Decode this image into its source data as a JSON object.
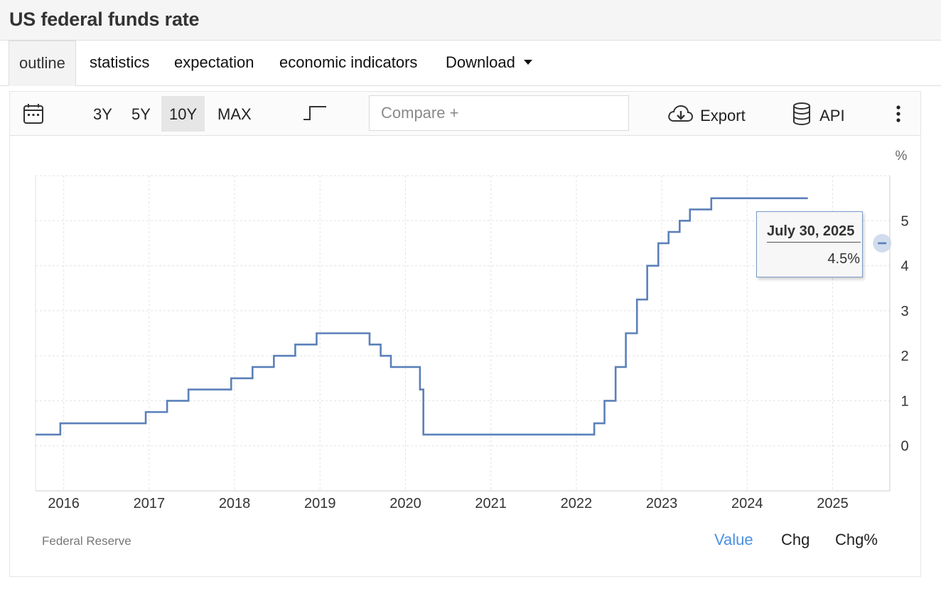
{
  "page": {
    "title": "US federal funds rate"
  },
  "tabs": [
    {
      "label": "outline",
      "active": true
    },
    {
      "label": "statistics"
    },
    {
      "label": "expectation"
    },
    {
      "label": "economic indicators"
    },
    {
      "label": "Download"
    }
  ],
  "toolbar": {
    "calendar_icon": "calendar-icon",
    "ranges": [
      {
        "label": "3Y"
      },
      {
        "label": "5Y"
      },
      {
        "label": "10Y",
        "selected": true
      },
      {
        "label": "MAX"
      }
    ],
    "chart_type_icon": "step-line-icon",
    "compare_placeholder": "Compare +",
    "export_label": "Export",
    "export_icon": "cloud-download-icon",
    "api_label": "API",
    "api_icon": "database-icon",
    "more_icon": "vertical-dots-icon"
  },
  "footer": {
    "source": "Federal Reserve",
    "value_tabs": [
      {
        "label": "Value",
        "active": true
      },
      {
        "label": "Chg"
      },
      {
        "label": "Chg%"
      }
    ]
  },
  "tooltip": {
    "date": "July 30, 2025",
    "value": "4.5%"
  },
  "colors": {
    "line": "#5b80b9",
    "active_tab": "#4a90e2",
    "tooltip_border": "#7a99c6"
  },
  "chart_data": {
    "type": "line",
    "step": true,
    "unit_label": "%",
    "x_range": [
      2015.67,
      2025.67
    ],
    "ylim": [
      -1,
      6
    ],
    "x_ticks": [
      "2016",
      "2017",
      "2018",
      "2019",
      "2020",
      "2021",
      "2022",
      "2023",
      "2024",
      "2025"
    ],
    "y_ticks": [
      "0",
      "1",
      "2",
      "3",
      "4",
      "5"
    ],
    "y_axis_position": "right",
    "grid": true,
    "series": [
      {
        "x": [
          2015.67,
          2015.96,
          2016.96,
          2017.21,
          2017.46,
          2017.96,
          2018.21,
          2018.46,
          2018.71,
          2018.96,
          2019.58,
          2019.71,
          2019.83,
          2020.17,
          2020.21,
          2022.21,
          2022.33,
          2022.46,
          2022.58,
          2022.71,
          2022.83,
          2022.96,
          2023.08,
          2023.21,
          2023.33,
          2023.58,
          2024.71
        ],
        "y": [
          0.25,
          0.5,
          0.75,
          1.0,
          1.25,
          1.5,
          1.75,
          2.0,
          2.25,
          2.5,
          2.25,
          2.0,
          1.75,
          1.25,
          0.25,
          0.5,
          1.0,
          1.75,
          2.5,
          3.25,
          4.0,
          4.5,
          4.75,
          5.0,
          5.25,
          5.5,
          5.5
        ]
      }
    ],
    "highlight_point": {
      "x": 2025.58,
      "y": 4.5
    }
  }
}
